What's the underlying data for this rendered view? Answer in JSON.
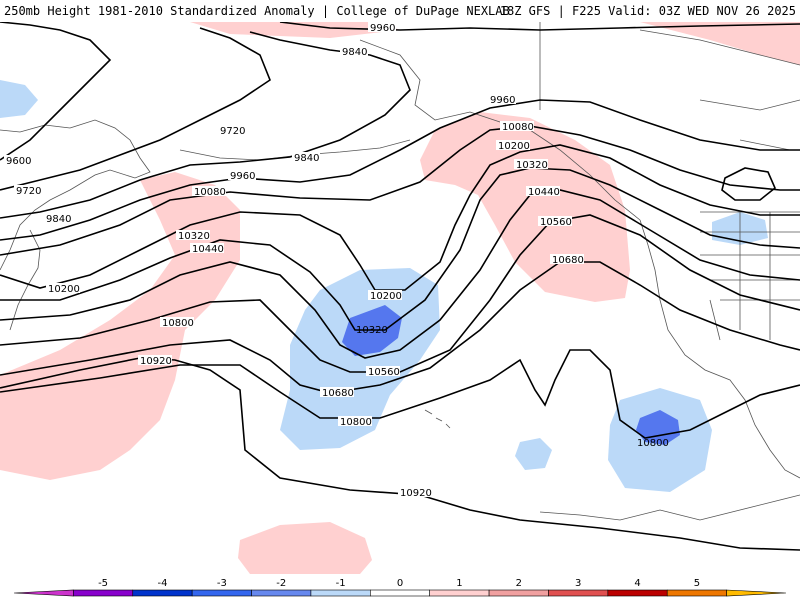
{
  "header": {
    "left_title": "250mb Height 1981-2010 Standardized Anomaly | College of DuPage NEXLAB",
    "right_title": "18Z GFS | F225 Valid: 03Z WED NOV 26 2025"
  },
  "contour_labels": {
    "l9960_top": "9960",
    "l9840_top": "9840",
    "l9720": "9720",
    "l9840_mid": "9840",
    "l9600": "9600",
    "l9720_left": "9720",
    "l9840_left": "9840",
    "l9960_mid": "9960",
    "l9960_right": "9960",
    "l10080": "10080",
    "l10080_ak": "10080",
    "l10200": "10200",
    "l10200_ak": "10200",
    "l10200_low": "10200",
    "l10320": "10320",
    "l10320_ak": "10320",
    "l10320_low": "10320",
    "l10440": "10440",
    "l10440_ak": "10440",
    "l10560": "10560",
    "l10560_ak": "10560",
    "l10680": "10680",
    "l10680_ak": "10680",
    "l10800": "10800",
    "l10800_low": "10800",
    "l10800_east": "10800",
    "l10920": "10920",
    "l10920_bot": "10920"
  },
  "legend": {
    "ticks": [
      "-5",
      "-4",
      "-3",
      "-2",
      "-1",
      "0",
      "1",
      "2",
      "3",
      "4",
      "5"
    ],
    "colors": [
      "#cc33cc",
      "#8800cc",
      "#0033cc",
      "#3366ee",
      "#6688ee",
      "#bbd9f8",
      "#ffffff",
      "#ffd0d0",
      "#f0a0a0",
      "#e05050",
      "#bb0000",
      "#ee7700",
      "#ffbb00"
    ]
  }
}
